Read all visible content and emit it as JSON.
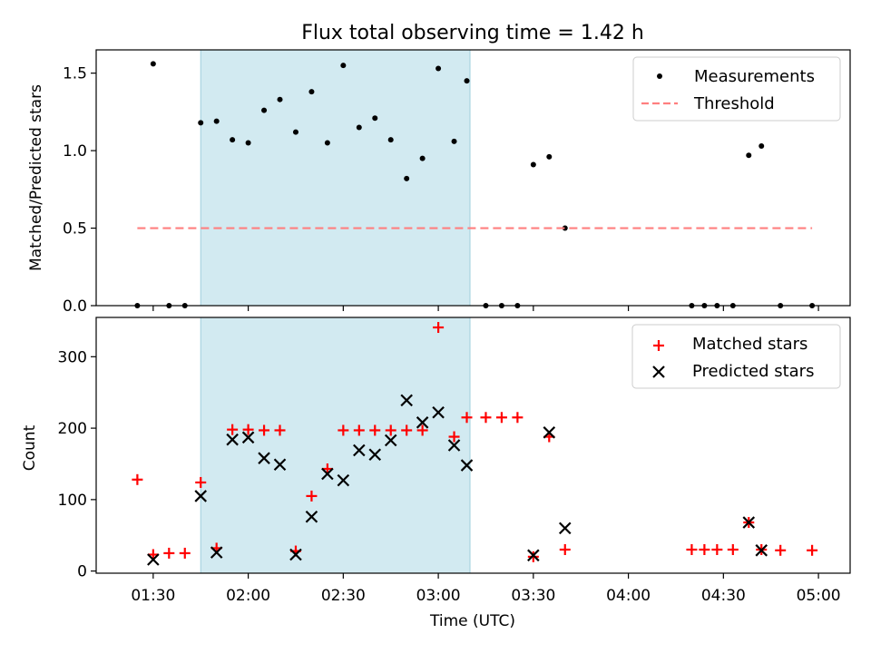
{
  "chart_data": [
    {
      "type": "scatter",
      "title": "Flux total observing time = 1.42 h",
      "xlabel": "",
      "ylabel": "Matched/Predicted stars",
      "ylim": [
        0,
        1.65
      ],
      "xlim": [
        "01:12",
        "05:10"
      ],
      "yticks": [
        {
          "value": 0.0,
          "label": "0.0"
        },
        {
          "value": 0.5,
          "label": "0.5"
        },
        {
          "value": 1.0,
          "label": "1.0"
        },
        {
          "value": 1.5,
          "label": "1.5"
        }
      ],
      "shaded_span": {
        "from": "01:45",
        "to": "03:10"
      },
      "legend_position": "upper right",
      "series": [
        {
          "name": "Measurements",
          "kind": "points",
          "color": "#000000",
          "x": [
            "01:25",
            "01:30",
            "01:35",
            "01:40",
            "01:45",
            "01:50",
            "01:55",
            "02:00",
            "02:05",
            "02:10",
            "02:15",
            "02:20",
            "02:25",
            "02:30",
            "02:35",
            "02:40",
            "02:45",
            "02:50",
            "02:55",
            "03:00",
            "03:05",
            "03:09",
            "03:15",
            "03:20",
            "03:25",
            "03:30",
            "03:35",
            "03:40",
            "04:20",
            "04:24",
            "04:28",
            "04:33",
            "04:38",
            "04:42",
            "04:48",
            "04:58"
          ],
          "values": [
            0.0,
            1.56,
            0.0,
            0.0,
            1.18,
            1.19,
            1.07,
            1.05,
            1.26,
            1.33,
            1.12,
            1.38,
            1.05,
            1.55,
            1.15,
            1.21,
            1.07,
            0.82,
            0.95,
            1.53,
            1.06,
            1.45,
            0.0,
            0.0,
            0.0,
            0.91,
            0.96,
            0.5,
            0.0,
            0.0,
            0.0,
            0.0,
            0.97,
            1.03,
            0.0,
            0.0
          ]
        },
        {
          "name": "Threshold",
          "kind": "dashed-line",
          "color": "#ff7f7f",
          "x": [
            "01:25",
            "04:58"
          ],
          "values": [
            0.5,
            0.5
          ]
        }
      ]
    },
    {
      "type": "scatter",
      "title": "",
      "xlabel": "Time (UTC)",
      "ylabel": "Count",
      "ylim": [
        -3,
        355
      ],
      "xlim": [
        "01:12",
        "05:10"
      ],
      "yticks": [
        {
          "value": 0,
          "label": "0"
        },
        {
          "value": 100,
          "label": "100"
        },
        {
          "value": 200,
          "label": "200"
        },
        {
          "value": 300,
          "label": "300"
        }
      ],
      "xticks": [
        {
          "value": "01:30",
          "label": "01:30"
        },
        {
          "value": "02:00",
          "label": "02:00"
        },
        {
          "value": "02:30",
          "label": "02:30"
        },
        {
          "value": "03:00",
          "label": "03:00"
        },
        {
          "value": "03:30",
          "label": "03:30"
        },
        {
          "value": "04:00",
          "label": "04:00"
        },
        {
          "value": "04:30",
          "label": "04:30"
        },
        {
          "value": "05:00",
          "label": "05:00"
        }
      ],
      "shaded_span": {
        "from": "01:45",
        "to": "03:10"
      },
      "legend_position": "upper right",
      "series": [
        {
          "name": "Matched stars",
          "kind": "plus",
          "color": "#ff0000",
          "x": [
            "01:25",
            "01:30",
            "01:35",
            "01:40",
            "01:45",
            "01:50",
            "01:55",
            "02:00",
            "02:05",
            "02:10",
            "02:15",
            "02:20",
            "02:25",
            "02:30",
            "02:35",
            "02:40",
            "02:45",
            "02:50",
            "02:55",
            "03:00",
            "03:05",
            "03:09",
            "03:15",
            "03:20",
            "03:25",
            "03:30",
            "03:35",
            "03:40",
            "04:20",
            "04:24",
            "04:28",
            "04:33",
            "04:38",
            "04:42",
            "04:48",
            "04:58"
          ],
          "values": [
            128,
            23,
            25,
            25,
            124,
            32,
            198,
            198,
            197,
            197,
            28,
            105,
            143,
            197,
            197,
            197,
            197,
            197,
            197,
            341,
            188,
            215,
            215,
            215,
            215,
            20,
            188,
            30,
            30,
            30,
            30,
            30,
            68,
            30,
            29,
            29
          ]
        },
        {
          "name": "Predicted stars",
          "kind": "cross",
          "color": "#000000",
          "x": [
            "01:30",
            "01:45",
            "01:50",
            "01:55",
            "02:00",
            "02:05",
            "02:10",
            "02:15",
            "02:20",
            "02:25",
            "02:30",
            "02:35",
            "02:40",
            "02:45",
            "02:50",
            "02:55",
            "03:00",
            "03:05",
            "03:09",
            "03:30",
            "03:35",
            "03:40",
            "04:38",
            "04:42"
          ],
          "values": [
            16,
            105,
            26,
            184,
            187,
            158,
            149,
            23,
            76,
            136,
            127,
            169,
            163,
            183,
            239,
            208,
            222,
            176,
            148,
            22,
            194,
            60,
            68,
            29
          ]
        }
      ]
    }
  ]
}
